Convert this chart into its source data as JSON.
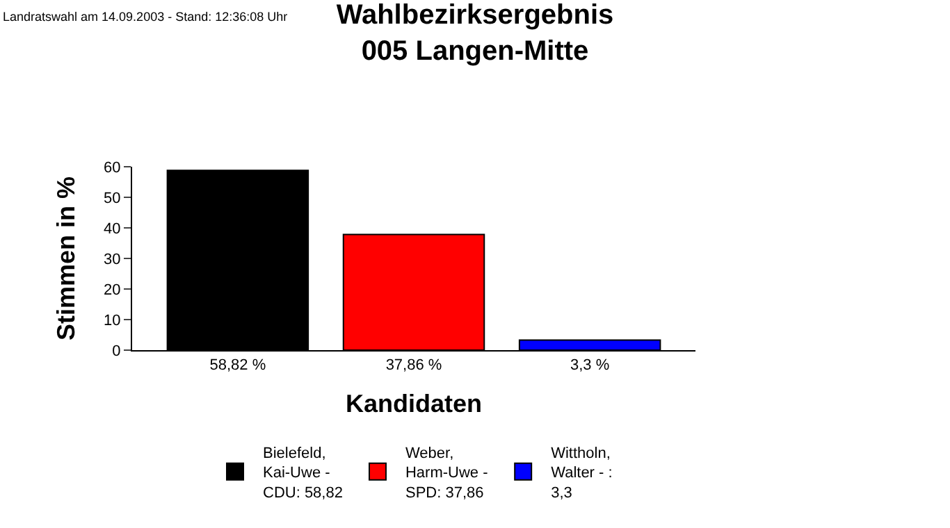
{
  "chart_data": {
    "type": "bar",
    "title": "Wahlbezirksergebnis",
    "subtitle": "005 Langen-Mitte",
    "xlabel": "Kandidaten",
    "ylabel": "Stimmen in %",
    "categories": [
      "58,82 %",
      "37,86 %",
      "3,3 %"
    ],
    "series": [
      {
        "name": "Bielefeld, Kai-Uwe - CDU: 58,82",
        "color": "#000000",
        "values": [
          58.82,
          null,
          null
        ]
      },
      {
        "name": "Weber, Harm-Uwe - SPD: 37,86",
        "color": "#ff0000",
        "values": [
          null,
          37.86,
          null
        ]
      },
      {
        "name": "Wittholn, Walter - : 3,3",
        "color": "#0000ff",
        "values": [
          null,
          null,
          3.3
        ]
      }
    ],
    "ylim": [
      0,
      60
    ],
    "yticks": [
      0,
      10,
      20,
      30,
      40,
      50,
      60
    ],
    "legend": "bottom",
    "annotations": [
      "Landratswahl am 14.09.2003 - Stand: 12:36:08 Uhr"
    ]
  }
}
